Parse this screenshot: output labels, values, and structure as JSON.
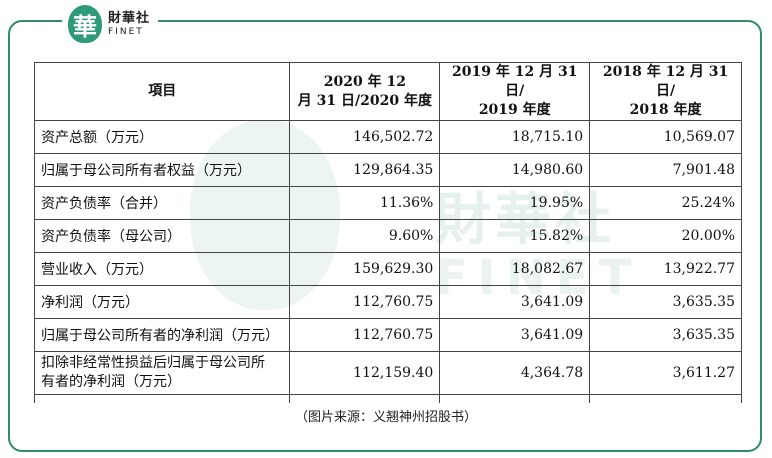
{
  "brand": {
    "logo_char": "華",
    "name_cn": "財華社",
    "name_en": "FINET",
    "accent_color": "#2e8b6e"
  },
  "table": {
    "headers": [
      "項目",
      "2020 年 12 月 31 日/2020 年度",
      "2019 年 12 月 31 日/ 2019 年度",
      "2018 年 12 月 31 日/ 2018 年度"
    ],
    "header_lines": [
      [
        "項目"
      ],
      [
        "2020 年 12",
        "月 31 日/2020 年度"
      ],
      [
        "2019 年 12 月 31 日/",
        "2019 年度"
      ],
      [
        "2018 年 12 月 31 日/",
        "2018 年度"
      ]
    ],
    "rows": [
      {
        "label": "资产总额（万元）",
        "v2020": "146,502.72",
        "v2019": "18,715.10",
        "v2018": "10,569.07"
      },
      {
        "label": "归属于母公司所有者权益（万元）",
        "v2020": "129,864.35",
        "v2019": "14,980.60",
        "v2018": "7,901.48"
      },
      {
        "label": "资产负债率（合并）",
        "v2020": "11.36%",
        "v2019": "19.95%",
        "v2018": "25.24%"
      },
      {
        "label": "资产负债率（母公司）",
        "v2020": "9.60%",
        "v2019": "15.82%",
        "v2018": "20.00%"
      },
      {
        "label": "营业收入（万元）",
        "v2020": "159,629.30",
        "v2019": "18,082.67",
        "v2018": "13,922.77"
      },
      {
        "label": "净利润（万元）",
        "v2020": "112,760.75",
        "v2019": "3,641.09",
        "v2018": "3,635.35"
      },
      {
        "label": "归属于母公司所有者的净利润（万元）",
        "v2020": "112,760.75",
        "v2019": "3,641.09",
        "v2018": "3,635.35"
      },
      {
        "label": "扣除非经常性损益后归属于母公司所有者的净利润（万元）",
        "label_lines": [
          "扣除非经常性损益后归属于母公司所",
          "有者的净利润（万元）"
        ],
        "v2020": "112,159.40",
        "v2019": "4,364.78",
        "v2018": "3,611.27"
      }
    ]
  },
  "caption": "（图片来源：义翘神州招股书）"
}
